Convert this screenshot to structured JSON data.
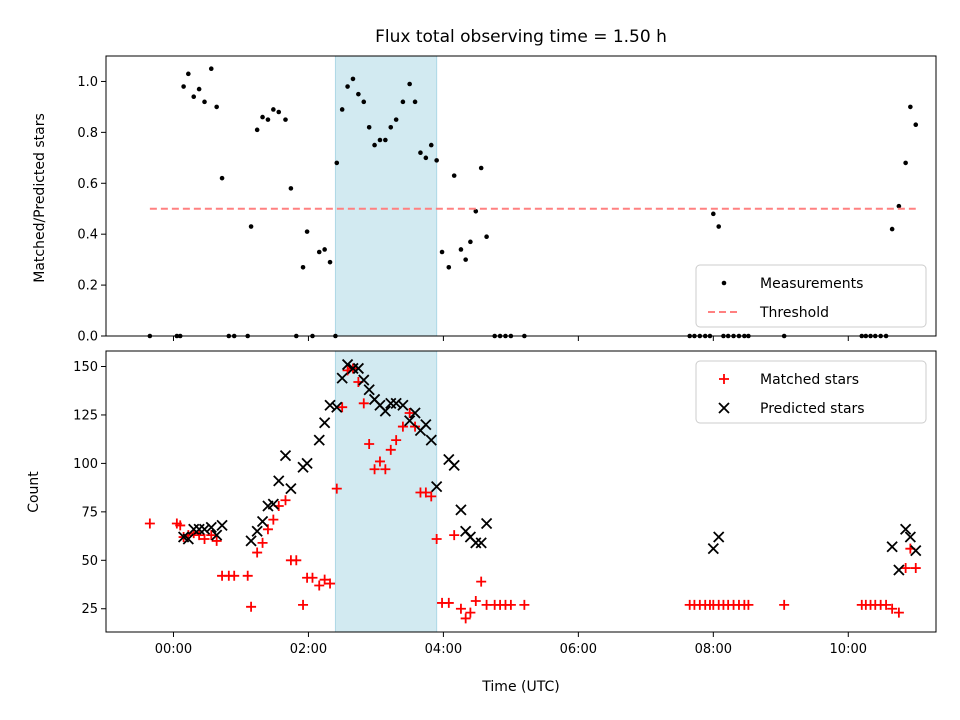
{
  "chart_data": [
    {
      "type": "scatter",
      "title": "Flux total observing time = 1.50 h",
      "xlabel": "",
      "ylabel": "Matched/Predicted stars",
      "xlim": [
        -1.0,
        11.3
      ],
      "ylim": [
        0.0,
        1.1
      ],
      "yticks": [
        0.0,
        0.2,
        0.4,
        0.6,
        0.8,
        1.0
      ],
      "ytick_labels": [
        "0.0",
        "0.2",
        "0.4",
        "0.6",
        "0.8",
        "1.0"
      ],
      "xticks": [
        0,
        2,
        4,
        6,
        8,
        10
      ],
      "shaded_interval": [
        2.4,
        3.9
      ],
      "shade_color": "#add8e6",
      "legend": {
        "position": "lower-right"
      },
      "series": [
        {
          "name": "Measurements",
          "color": "#000000",
          "marker": "dot",
          "points": [
            [
              -0.35,
              0.0
            ],
            [
              0.05,
              0.0
            ],
            [
              0.1,
              0.0
            ],
            [
              0.15,
              0.98
            ],
            [
              0.22,
              1.03
            ],
            [
              0.3,
              0.94
            ],
            [
              0.38,
              0.97
            ],
            [
              0.46,
              0.92
            ],
            [
              0.56,
              1.05
            ],
            [
              0.64,
              0.9
            ],
            [
              0.72,
              0.62
            ],
            [
              0.82,
              0.0
            ],
            [
              0.9,
              0.0
            ],
            [
              1.1,
              0.0
            ],
            [
              1.15,
              0.43
            ],
            [
              1.24,
              0.81
            ],
            [
              1.32,
              0.86
            ],
            [
              1.4,
              0.85
            ],
            [
              1.48,
              0.89
            ],
            [
              1.56,
              0.88
            ],
            [
              1.66,
              0.85
            ],
            [
              1.74,
              0.58
            ],
            [
              1.82,
              0.0
            ],
            [
              1.92,
              0.27
            ],
            [
              1.98,
              0.41
            ],
            [
              2.06,
              0.0
            ],
            [
              2.16,
              0.33
            ],
            [
              2.24,
              0.34
            ],
            [
              2.32,
              0.29
            ],
            [
              2.4,
              0.0
            ],
            [
              2.42,
              0.68
            ],
            [
              2.5,
              0.89
            ],
            [
              2.58,
              0.98
            ],
            [
              2.66,
              1.01
            ],
            [
              2.74,
              0.95
            ],
            [
              2.82,
              0.92
            ],
            [
              2.9,
              0.82
            ],
            [
              2.98,
              0.75
            ],
            [
              3.06,
              0.77
            ],
            [
              3.14,
              0.77
            ],
            [
              3.22,
              0.82
            ],
            [
              3.3,
              0.85
            ],
            [
              3.4,
              0.92
            ],
            [
              3.5,
              0.99
            ],
            [
              3.58,
              0.92
            ],
            [
              3.66,
              0.72
            ],
            [
              3.74,
              0.7
            ],
            [
              3.82,
              0.75
            ],
            [
              3.9,
              0.69
            ],
            [
              3.98,
              0.33
            ],
            [
              4.08,
              0.27
            ],
            [
              4.16,
              0.63
            ],
            [
              4.26,
              0.34
            ],
            [
              4.33,
              0.3
            ],
            [
              4.4,
              0.37
            ],
            [
              4.48,
              0.49
            ],
            [
              4.56,
              0.66
            ],
            [
              4.64,
              0.39
            ],
            [
              4.76,
              0.0
            ],
            [
              4.84,
              0.0
            ],
            [
              4.92,
              0.0
            ],
            [
              5.0,
              0.0
            ],
            [
              5.2,
              0.0
            ],
            [
              7.65,
              0.0
            ],
            [
              7.72,
              0.0
            ],
            [
              7.8,
              0.0
            ],
            [
              7.88,
              0.0
            ],
            [
              7.95,
              0.0
            ],
            [
              8.0,
              0.48
            ],
            [
              8.08,
              0.43
            ],
            [
              8.15,
              0.0
            ],
            [
              8.22,
              0.0
            ],
            [
              8.3,
              0.0
            ],
            [
              8.38,
              0.0
            ],
            [
              8.46,
              0.0
            ],
            [
              8.52,
              0.0
            ],
            [
              9.05,
              0.0
            ],
            [
              10.2,
              0.0
            ],
            [
              10.26,
              0.0
            ],
            [
              10.33,
              0.0
            ],
            [
              10.4,
              0.0
            ],
            [
              10.48,
              0.0
            ],
            [
              10.56,
              0.0
            ],
            [
              10.65,
              0.42
            ],
            [
              10.75,
              0.51
            ],
            [
              10.85,
              0.68
            ],
            [
              10.92,
              0.9
            ],
            [
              11.0,
              0.83
            ]
          ]
        },
        {
          "name": "Threshold",
          "color": "#ff8080",
          "style": "dashed",
          "points": [
            [
              -0.35,
              0.5
            ],
            [
              11.0,
              0.5
            ]
          ]
        }
      ]
    },
    {
      "type": "scatter",
      "title": "",
      "xlabel": "Time (UTC)",
      "ylabel": "Count",
      "xlim": [
        -1.0,
        11.3
      ],
      "ylim": [
        13,
        158
      ],
      "yticks": [
        25,
        50,
        75,
        100,
        125,
        150
      ],
      "ytick_labels": [
        "25",
        "50",
        "75",
        "100",
        "125",
        "150"
      ],
      "xticks": [
        0,
        2,
        4,
        6,
        8,
        10
      ],
      "xtick_labels": [
        "00:00",
        "02:00",
        "04:00",
        "06:00",
        "08:00",
        "10:00"
      ],
      "shaded_interval": [
        2.4,
        3.9
      ],
      "shade_color": "#add8e6",
      "legend": {
        "position": "upper-right"
      },
      "series": [
        {
          "name": "Matched stars",
          "color": "#ff0000",
          "marker": "plus",
          "points": [
            [
              -0.35,
              69
            ],
            [
              0.05,
              69
            ],
            [
              0.1,
              68
            ],
            [
              0.15,
              62
            ],
            [
              0.22,
              63
            ],
            [
              0.3,
              64
            ],
            [
              0.38,
              63
            ],
            [
              0.46,
              61
            ],
            [
              0.56,
              63
            ],
            [
              0.64,
              60
            ],
            [
              0.72,
              42
            ],
            [
              0.82,
              42
            ],
            [
              0.9,
              42
            ],
            [
              1.1,
              42
            ],
            [
              1.15,
              26
            ],
            [
              1.24,
              54
            ],
            [
              1.32,
              59
            ],
            [
              1.4,
              66
            ],
            [
              1.48,
              71
            ],
            [
              1.56,
              78
            ],
            [
              1.66,
              81
            ],
            [
              1.74,
              50
            ],
            [
              1.82,
              50
            ],
            [
              1.92,
              27
            ],
            [
              1.98,
              41
            ],
            [
              2.06,
              41
            ],
            [
              2.16,
              37
            ],
            [
              2.24,
              40
            ],
            [
              2.32,
              38
            ],
            [
              2.42,
              87
            ],
            [
              2.5,
              129
            ],
            [
              2.58,
              148
            ],
            [
              2.66,
              149
            ],
            [
              2.74,
              142
            ],
            [
              2.82,
              131
            ],
            [
              2.9,
              110
            ],
            [
              2.98,
              97
            ],
            [
              3.06,
              101
            ],
            [
              3.14,
              97
            ],
            [
              3.22,
              107
            ],
            [
              3.3,
              112
            ],
            [
              3.4,
              119
            ],
            [
              3.5,
              126
            ],
            [
              3.58,
              119
            ],
            [
              3.66,
              85
            ],
            [
              3.74,
              85
            ],
            [
              3.82,
              83
            ],
            [
              3.9,
              61
            ],
            [
              3.98,
              28
            ],
            [
              4.08,
              28
            ],
            [
              4.16,
              63
            ],
            [
              4.26,
              25
            ],
            [
              4.33,
              20
            ],
            [
              4.4,
              23
            ],
            [
              4.48,
              29
            ],
            [
              4.56,
              39
            ],
            [
              4.64,
              27
            ],
            [
              4.76,
              27
            ],
            [
              4.84,
              27
            ],
            [
              4.92,
              27
            ],
            [
              5.0,
              27
            ],
            [
              5.2,
              27
            ],
            [
              7.65,
              27
            ],
            [
              7.72,
              27
            ],
            [
              7.8,
              27
            ],
            [
              7.88,
              27
            ],
            [
              7.95,
              27
            ],
            [
              8.0,
              27
            ],
            [
              8.08,
              27
            ],
            [
              8.15,
              27
            ],
            [
              8.22,
              27
            ],
            [
              8.3,
              27
            ],
            [
              8.38,
              27
            ],
            [
              8.46,
              27
            ],
            [
              8.52,
              27
            ],
            [
              9.05,
              27
            ],
            [
              10.2,
              27
            ],
            [
              10.26,
              27
            ],
            [
              10.33,
              27
            ],
            [
              10.4,
              27
            ],
            [
              10.48,
              27
            ],
            [
              10.56,
              27
            ],
            [
              10.65,
              25
            ],
            [
              10.75,
              23
            ],
            [
              10.85,
              46
            ],
            [
              10.92,
              56
            ],
            [
              11.0,
              46
            ]
          ]
        },
        {
          "name": "Predicted stars",
          "color": "#000000",
          "marker": "x",
          "points": [
            [
              0.15,
              62
            ],
            [
              0.22,
              61
            ],
            [
              0.3,
              66
            ],
            [
              0.38,
              66
            ],
            [
              0.46,
              66
            ],
            [
              0.56,
              67
            ],
            [
              0.64,
              63
            ],
            [
              0.72,
              68
            ],
            [
              1.15,
              60
            ],
            [
              1.24,
              65
            ],
            [
              1.32,
              70
            ],
            [
              1.4,
              78
            ],
            [
              1.48,
              79
            ],
            [
              1.56,
              91
            ],
            [
              1.66,
              104
            ],
            [
              1.74,
              87
            ],
            [
              1.92,
              98
            ],
            [
              1.98,
              100
            ],
            [
              2.16,
              112
            ],
            [
              2.24,
              121
            ],
            [
              2.32,
              130
            ],
            [
              2.42,
              129
            ],
            [
              2.5,
              144
            ],
            [
              2.58,
              151
            ],
            [
              2.66,
              149
            ],
            [
              2.74,
              149
            ],
            [
              2.82,
              143
            ],
            [
              2.9,
              138
            ],
            [
              2.98,
              133
            ],
            [
              3.06,
              130
            ],
            [
              3.14,
              127
            ],
            [
              3.22,
              131
            ],
            [
              3.3,
              131
            ],
            [
              3.4,
              130
            ],
            [
              3.5,
              122
            ],
            [
              3.58,
              126
            ],
            [
              3.66,
              117
            ],
            [
              3.74,
              120
            ],
            [
              3.82,
              112
            ],
            [
              3.9,
              88
            ],
            [
              4.08,
              102
            ],
            [
              4.16,
              99
            ],
            [
              4.26,
              76
            ],
            [
              4.33,
              65
            ],
            [
              4.4,
              62
            ],
            [
              4.48,
              59
            ],
            [
              4.56,
              59
            ],
            [
              4.64,
              69
            ],
            [
              8.0,
              56
            ],
            [
              8.08,
              62
            ],
            [
              10.65,
              57
            ],
            [
              10.75,
              45
            ],
            [
              10.85,
              66
            ],
            [
              10.92,
              62
            ],
            [
              11.0,
              55
            ]
          ]
        }
      ]
    }
  ]
}
